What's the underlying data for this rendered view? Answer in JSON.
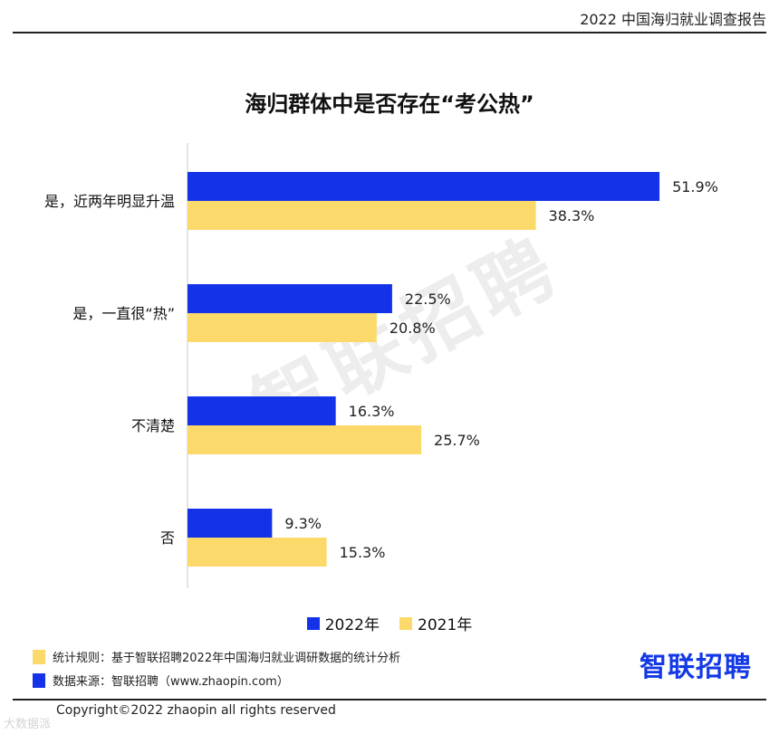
{
  "header": {
    "report_title": "2022 中国海归就业调查报告"
  },
  "chart_data": {
    "type": "bar",
    "orientation": "horizontal",
    "title": "海归群体中是否存在“考公热”",
    "categories": [
      "是，近两年明显升温",
      "是，一直很“热”",
      "不清楚",
      "否"
    ],
    "series": [
      {
        "name": "2022年",
        "color": "#1432e8",
        "values": [
          51.9,
          22.5,
          16.3,
          9.3
        ],
        "labels": [
          "51.9%",
          "22.5%",
          "16.3%",
          "9.3%"
        ]
      },
      {
        "name": "2021年",
        "color": "#fcd96b",
        "values": [
          38.3,
          20.8,
          25.7,
          15.3
        ],
        "labels": [
          "38.3%",
          "20.8%",
          "25.7%",
          "15.3%"
        ]
      }
    ],
    "xlim": [
      0,
      60
    ],
    "grid": false,
    "legend_position": "bottom"
  },
  "watermark": {
    "text": "智联招聘"
  },
  "footer": {
    "rule_note": "统计规则：基于智联招聘2022年中国海归就业调研数据的统计分析",
    "source_note": "数据来源：智联招聘（www.zhaopin.com）",
    "note_colors": {
      "rule": "#fcd96b",
      "source": "#1432e8"
    },
    "brand": "智联招聘",
    "copyright": "Copyright©2022 zhaopin all rights reserved",
    "corner_mark": "大数据派"
  }
}
